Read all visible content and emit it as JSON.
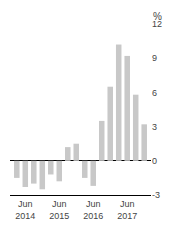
{
  "chart_data": {
    "type": "bar",
    "ylabel": "%",
    "categories": [
      null,
      "Jun\n2014",
      null,
      null,
      null,
      "Jun\n2015",
      null,
      null,
      null,
      "Jun\n2016",
      null,
      null,
      null,
      "Jun\n2017",
      null,
      null
    ],
    "values": [
      -1.5,
      -2.3,
      -2.0,
      -2.5,
      -1.2,
      -1.8,
      1.2,
      1.5,
      -1.5,
      -2.2,
      3.5,
      6.5,
      10.2,
      9.2,
      5.8,
      3.2
    ],
    "color": "#c8c8c8",
    "ylim": [
      -3,
      12
    ],
    "yticks": [
      -3,
      0,
      3,
      6,
      9,
      12
    ],
    "grid": false
  }
}
